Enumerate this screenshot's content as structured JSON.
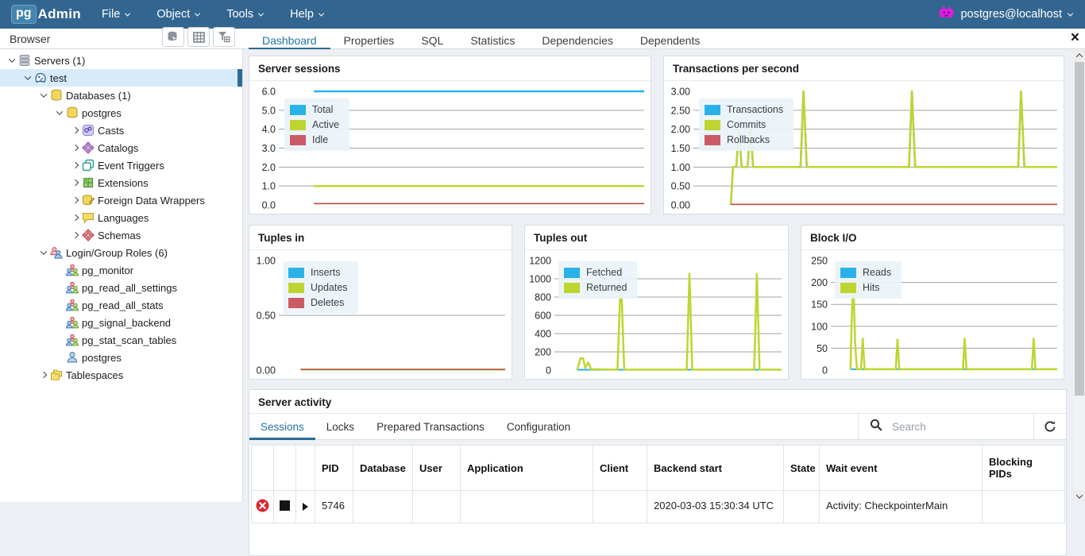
{
  "navbar": {
    "logo_pg": "pg",
    "logo_admin": "Admin",
    "menus": [
      "File",
      "Object",
      "Tools",
      "Help"
    ],
    "user": "postgres@localhost"
  },
  "browser_panel": {
    "title": "Browser"
  },
  "tabs": {
    "items": [
      "Dashboard",
      "Properties",
      "SQL",
      "Statistics",
      "Dependencies",
      "Dependents"
    ],
    "active": "Dashboard",
    "close_glyph": "×"
  },
  "sidebar": {
    "tree": [
      {
        "label": "Servers (1)",
        "icon": "servers-icon",
        "level": 0,
        "chevron": "down",
        "selected": false
      },
      {
        "label": "test",
        "icon": "postgres-server-icon",
        "level": 1,
        "chevron": "down",
        "selected": true
      },
      {
        "label": "Databases (1)",
        "icon": "databases-icon",
        "level": 2,
        "chevron": "down",
        "selected": false
      },
      {
        "label": "postgres",
        "icon": "database-icon",
        "level": 3,
        "chevron": "down",
        "selected": false
      },
      {
        "label": "Casts",
        "icon": "casts-icon",
        "level": 4,
        "chevron": "right",
        "selected": false
      },
      {
        "label": "Catalogs",
        "icon": "catalogs-icon",
        "level": 4,
        "chevron": "right",
        "selected": false
      },
      {
        "label": "Event Triggers",
        "icon": "event-triggers-icon",
        "level": 4,
        "chevron": "right",
        "selected": false
      },
      {
        "label": "Extensions",
        "icon": "extensions-icon",
        "level": 4,
        "chevron": "right",
        "selected": false
      },
      {
        "label": "Foreign Data Wrappers",
        "icon": "fdw-icon",
        "level": 4,
        "chevron": "right",
        "selected": false
      },
      {
        "label": "Languages",
        "icon": "languages-icon",
        "level": 4,
        "chevron": "right",
        "selected": false
      },
      {
        "label": "Schemas",
        "icon": "schemas-icon",
        "level": 4,
        "chevron": "right",
        "selected": false
      },
      {
        "label": "Login/Group Roles (6)",
        "icon": "roles-group-icon",
        "level": 2,
        "chevron": "down",
        "selected": false
      },
      {
        "label": "pg_monitor",
        "icon": "role-item-icon",
        "level": 3,
        "chevron": null,
        "selected": false
      },
      {
        "label": "pg_read_all_settings",
        "icon": "role-item-icon",
        "level": 3,
        "chevron": null,
        "selected": false
      },
      {
        "label": "pg_read_all_stats",
        "icon": "role-item-icon",
        "level": 3,
        "chevron": null,
        "selected": false
      },
      {
        "label": "pg_signal_backend",
        "icon": "role-item-icon",
        "level": 3,
        "chevron": null,
        "selected": false
      },
      {
        "label": "pg_stat_scan_tables",
        "icon": "role-item-icon",
        "level": 3,
        "chevron": null,
        "selected": false
      },
      {
        "label": "postgres",
        "icon": "user-icon",
        "level": 3,
        "chevron": null,
        "selected": false
      },
      {
        "label": "Tablespaces",
        "icon": "tablespaces-icon",
        "level": 2,
        "chevron": "right",
        "selected": false
      }
    ]
  },
  "chart_data": [
    {
      "type": "line",
      "title": "Server sessions",
      "ylim": [
        0,
        6
      ],
      "grid": true,
      "legend_position": "top-left",
      "y_ticks": [
        "6.0",
        "5.0",
        "4.0",
        "3.0",
        "2.0",
        "1.0",
        "0.0"
      ],
      "legend": [
        {
          "label": "Total",
          "color": "#29b2e8"
        },
        {
          "label": "Active",
          "color": "#bfd52f"
        },
        {
          "label": "Idle",
          "color": "#cc5a66"
        }
      ],
      "series": [
        {
          "name": "Total",
          "color": "#29b2e8",
          "width": 2.5,
          "points": [
            [
              0.09,
              6
            ],
            [
              1,
              6
            ]
          ]
        },
        {
          "name": "Active",
          "color": "#bfd52f",
          "width": 2.5,
          "points": [
            [
              0.09,
              1
            ],
            [
              1,
              1
            ]
          ]
        },
        {
          "name": "Idle",
          "color": "#b84c44",
          "width": 1.6,
          "points": [
            [
              0.09,
              0.07
            ],
            [
              1,
              0.07
            ]
          ]
        }
      ]
    },
    {
      "type": "line",
      "title": "Transactions per second",
      "ylim": [
        0,
        3
      ],
      "grid": true,
      "legend_position": "top-left",
      "y_ticks": [
        "3.00",
        "2.50",
        "2.00",
        "1.50",
        "1.00",
        "0.50",
        "0.00"
      ],
      "legend": [
        {
          "label": "Transactions",
          "color": "#29b2e8"
        },
        {
          "label": "Commits",
          "color": "#bfd52f"
        },
        {
          "label": "Rollbacks",
          "color": "#cc5a66"
        }
      ],
      "series": [
        {
          "name": "Transactions",
          "color": "#29b2e8",
          "width": 2.5,
          "points": [
            [
              0.097,
              0
            ],
            [
              0.103,
              1
            ],
            [
              0.112,
              1
            ],
            [
              0.119,
              2
            ],
            [
              0.127,
              1
            ],
            [
              0.143,
              1
            ],
            [
              0.151,
              2
            ],
            [
              0.159,
              1
            ],
            [
              0.29,
              1
            ],
            [
              0.298,
              3
            ],
            [
              0.307,
              1
            ],
            [
              0.59,
              1
            ],
            [
              0.598,
              3
            ],
            [
              0.607,
              1
            ],
            [
              0.892,
              1
            ],
            [
              0.9,
              3
            ],
            [
              0.909,
              1
            ],
            [
              1,
              1
            ]
          ]
        },
        {
          "name": "Commits",
          "color": "#bfd52f",
          "width": 2.5,
          "points": [
            [
              0.097,
              0
            ],
            [
              0.103,
              1
            ],
            [
              0.112,
              1
            ],
            [
              0.119,
              2
            ],
            [
              0.127,
              1
            ],
            [
              0.143,
              1
            ],
            [
              0.151,
              2
            ],
            [
              0.159,
              1
            ],
            [
              0.29,
              1
            ],
            [
              0.298,
              3
            ],
            [
              0.307,
              1
            ],
            [
              0.59,
              1
            ],
            [
              0.598,
              3
            ],
            [
              0.607,
              1
            ],
            [
              0.892,
              1
            ],
            [
              0.9,
              3
            ],
            [
              0.909,
              1
            ],
            [
              1,
              1
            ]
          ]
        },
        {
          "name": "Rollbacks",
          "color": "#b84c44",
          "width": 1.6,
          "points": [
            [
              0.097,
              0.015
            ],
            [
              1,
              0.015
            ]
          ]
        }
      ]
    },
    {
      "type": "line",
      "title": "Tuples in",
      "ylim": [
        0,
        1
      ],
      "grid": true,
      "legend_position": "top-left",
      "y_ticks": [
        "1.00",
        "0.50",
        "0.00"
      ],
      "legend": [
        {
          "label": "Inserts",
          "color": "#29b2e8"
        },
        {
          "label": "Updates",
          "color": "#bfd52f"
        },
        {
          "label": "Deletes",
          "color": "#cc5a66"
        }
      ],
      "series": [
        {
          "name": "Inserts",
          "color": "#29b2e8",
          "width": 2,
          "points": [
            [
              0.087,
              0.004
            ],
            [
              1,
              0.004
            ]
          ]
        },
        {
          "name": "Updates",
          "color": "#bfd52f",
          "width": 2,
          "points": [
            [
              0.087,
              0.004
            ],
            [
              1,
              0.004
            ]
          ]
        },
        {
          "name": "Deletes",
          "color": "#b84c44",
          "width": 1.6,
          "points": [
            [
              0.087,
              0.007
            ],
            [
              1,
              0.007
            ]
          ]
        }
      ]
    },
    {
      "type": "line",
      "title": "Tuples out",
      "ylim": [
        0,
        1200
      ],
      "grid": true,
      "legend_position": "top-left",
      "y_ticks": [
        "1200",
        "1000",
        "800",
        "600",
        "400",
        "200",
        "0"
      ],
      "legend": [
        {
          "label": "Fetched",
          "color": "#29b2e8"
        },
        {
          "label": "Returned",
          "color": "#bfd52f"
        }
      ],
      "series": [
        {
          "name": "Fetched",
          "color": "#29b2e8",
          "width": 2,
          "points": [
            [
              0.09,
              4
            ],
            [
              1,
              4
            ]
          ]
        },
        {
          "name": "Returned",
          "color": "#bfd52f",
          "width": 2.5,
          "points": [
            [
              0.09,
              5
            ],
            [
              0.098,
              60
            ],
            [
              0.105,
              130
            ],
            [
              0.117,
              128
            ],
            [
              0.127,
              25
            ],
            [
              0.14,
              85
            ],
            [
              0.152,
              10
            ],
            [
              0.27,
              5
            ],
            [
              0.285,
              1050
            ],
            [
              0.3,
              5
            ],
            [
              0.578,
              5
            ],
            [
              0.59,
              1055
            ],
            [
              0.603,
              5
            ],
            [
              0.878,
              5
            ],
            [
              0.89,
              1055
            ],
            [
              0.902,
              5
            ],
            [
              1,
              5
            ]
          ]
        }
      ]
    },
    {
      "type": "line",
      "title": "Block I/O",
      "ylim": [
        0,
        250
      ],
      "grid": true,
      "legend_position": "top-left",
      "y_ticks": [
        "250",
        "200",
        "150",
        "100",
        "50",
        "0"
      ],
      "legend": [
        {
          "label": "Reads",
          "color": "#29b2e8"
        },
        {
          "label": "Hits",
          "color": "#bfd52f"
        }
      ],
      "series": [
        {
          "name": "Reads",
          "color": "#29b2e8",
          "width": 2,
          "points": [
            [
              0.077,
              2
            ],
            [
              1,
              2
            ]
          ]
        },
        {
          "name": "Hits",
          "color": "#bfd52f",
          "width": 2.5,
          "points": [
            [
              0.077,
              2
            ],
            [
              0.083,
              120
            ],
            [
              0.09,
              205
            ],
            [
              0.098,
              60
            ],
            [
              0.106,
              2
            ],
            [
              0.124,
              2
            ],
            [
              0.132,
              72
            ],
            [
              0.14,
              2
            ],
            [
              0.279,
              2
            ],
            [
              0.287,
              70
            ],
            [
              0.295,
              2
            ],
            [
              0.579,
              2
            ],
            [
              0.587,
              72
            ],
            [
              0.595,
              2
            ],
            [
              0.887,
              2
            ],
            [
              0.895,
              72
            ],
            [
              0.903,
              2
            ],
            [
              1,
              2
            ]
          ]
        }
      ]
    }
  ],
  "server_activity": {
    "title": "Server activity",
    "tabs": [
      "Sessions",
      "Locks",
      "Prepared Transactions",
      "Configuration"
    ],
    "active_tab": "Sessions",
    "search_placeholder": "Search",
    "table": {
      "columns": [
        "",
        "",
        "",
        "PID",
        "Database",
        "User",
        "Application",
        "Client",
        "Backend start",
        "State",
        "Wait event",
        "Blocking PIDs"
      ],
      "rows": [
        {
          "icons": [
            "cancel-icon",
            "terminate-icon",
            "expand-icon"
          ],
          "cells": [
            "5746",
            "",
            "",
            "",
            "",
            "2020-03-03 15:30:34 UTC",
            "",
            "Activity: CheckpointerMain",
            ""
          ]
        }
      ]
    }
  }
}
